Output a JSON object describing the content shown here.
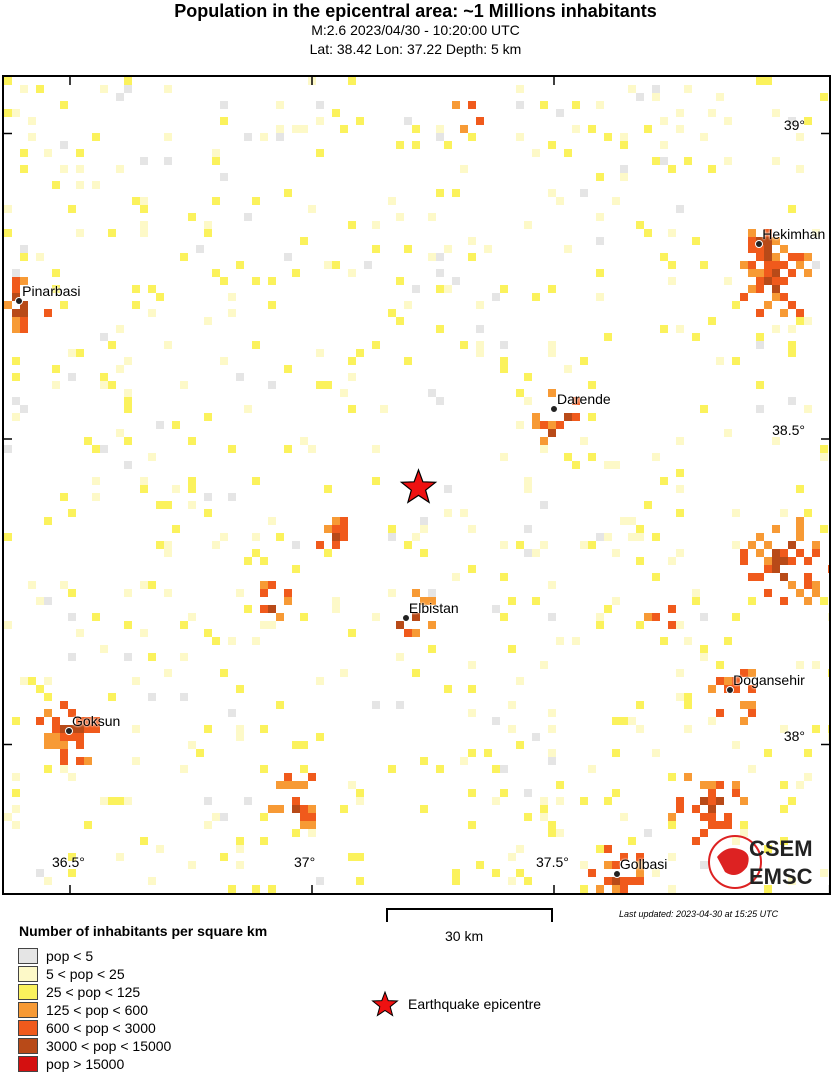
{
  "header": {
    "title": "Population in the epicentral area: ~1 Millions inhabitants",
    "event_line": "M:2.6 2023/04/30 - 10:20:00 UTC",
    "location_line": "Lat: 38.42 Lon: 37.22 Depth: 5 km"
  },
  "map": {
    "epicenter": {
      "lon": 37.22,
      "lat": 38.42,
      "color": "#ee1111"
    },
    "lon_ticks": [
      {
        "value": 36.5,
        "label": "36.5°"
      },
      {
        "value": 37,
        "label": "37°"
      },
      {
        "value": 37.5,
        "label": "37.5°"
      }
    ],
    "lat_ticks": [
      {
        "value": 39,
        "label": "39°"
      },
      {
        "value": 38.5,
        "label": "38.5°"
      },
      {
        "value": 38,
        "label": "38°"
      }
    ],
    "cities": [
      {
        "name": "Pinarbasi",
        "lon": 36.395,
        "lat": 38.726
      },
      {
        "name": "Hekimhan",
        "lon": 37.924,
        "lat": 38.819
      },
      {
        "name": "Darende",
        "lon": 37.5,
        "lat": 38.549
      },
      {
        "name": "Elbistan",
        "lon": 37.194,
        "lat": 38.207
      },
      {
        "name": "Dogansehir",
        "lon": 37.864,
        "lat": 38.089
      },
      {
        "name": "Goksun",
        "lon": 36.498,
        "lat": 38.022
      },
      {
        "name": "Golbasi",
        "lon": 37.63,
        "lat": 37.788
      }
    ],
    "logo": {
      "top": "CSEM",
      "bottom": "EMSC"
    }
  },
  "scale": {
    "label": "30 km"
  },
  "updated": "Last updated: 2023-04-30 at 15:25 UTC",
  "legend": {
    "title": "Number of inhabitants per square km",
    "items": [
      {
        "label": "pop < 5",
        "color": "#e5e5e5"
      },
      {
        "label": "5 < pop < 25",
        "color": "#fdf9c8"
      },
      {
        "label": "25 < pop < 125",
        "color": "#fbf25c"
      },
      {
        "label": "125 < pop < 600",
        "color": "#f79a35"
      },
      {
        "label": "600 < pop < 3000",
        "color": "#f05a1c"
      },
      {
        "label": "3000 < pop < 15000",
        "color": "#b84a18"
      },
      {
        "label": "pop > 15000",
        "color": "#d41010"
      }
    ],
    "epicentre_label": "Earthquake epicentre"
  }
}
